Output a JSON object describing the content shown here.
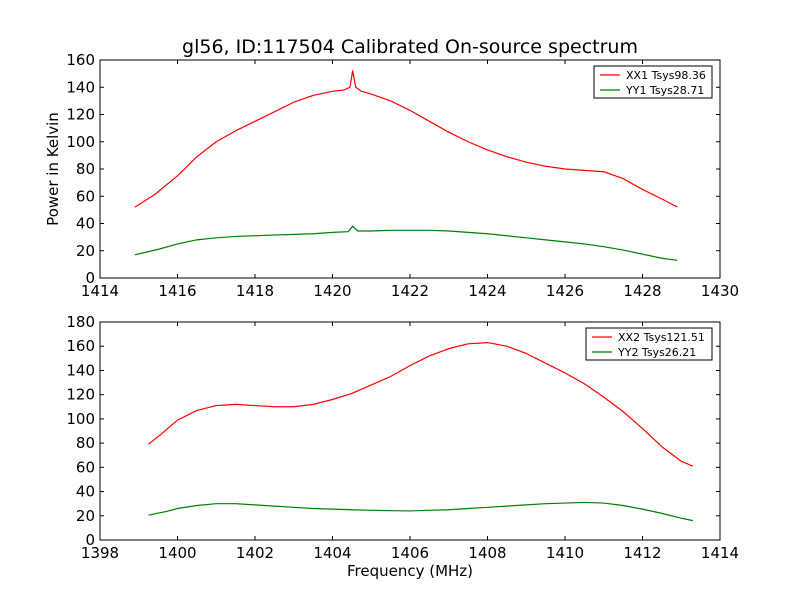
{
  "chart_data": [
    {
      "type": "line",
      "title": "gl56, ID:117504 Calibrated On-source spectrum",
      "xlabel": "",
      "ylabel": "Power in Kelvin",
      "xlim": [
        1414,
        1430
      ],
      "ylim": [
        0,
        160
      ],
      "xticks": [
        1414,
        1416,
        1418,
        1420,
        1422,
        1424,
        1426,
        1428,
        1430
      ],
      "yticks": [
        0,
        20,
        40,
        60,
        80,
        100,
        120,
        140,
        160
      ],
      "grid": false,
      "legend": "top-right",
      "series": [
        {
          "name": "XX1 Tsys98.36",
          "color": "#ff0000",
          "x": [
            1414.9,
            1415.4,
            1416.0,
            1416.5,
            1417.0,
            1417.5,
            1418.0,
            1418.5,
            1419.0,
            1419.5,
            1420.0,
            1420.3,
            1420.45,
            1420.52,
            1420.6,
            1420.75,
            1421.0,
            1421.5,
            1422.0,
            1422.5,
            1423.0,
            1423.5,
            1424.0,
            1424.5,
            1425.0,
            1425.5,
            1426.0,
            1426.5,
            1427.0,
            1427.5,
            1428.0,
            1428.5,
            1428.9
          ],
          "y": [
            52,
            61,
            75,
            89,
            100,
            108,
            115,
            122,
            129,
            134,
            137,
            138,
            140,
            152,
            140,
            137,
            135,
            130,
            123,
            115,
            107,
            100,
            94,
            89,
            85,
            82,
            80,
            79,
            78,
            73,
            65,
            58,
            52
          ]
        },
        {
          "name": "YY1 Tsys28.71",
          "color": "#007f00",
          "x": [
            1414.9,
            1415.5,
            1416.0,
            1416.5,
            1417.0,
            1417.5,
            1418.0,
            1418.5,
            1419.0,
            1419.5,
            1420.0,
            1420.4,
            1420.52,
            1420.65,
            1421.0,
            1421.5,
            1422.0,
            1422.5,
            1423.0,
            1423.5,
            1424.0,
            1424.5,
            1425.0,
            1425.5,
            1426.0,
            1426.5,
            1427.0,
            1427.5,
            1428.0,
            1428.5,
            1428.9
          ],
          "y": [
            17,
            21,
            25,
            28,
            29.5,
            30.5,
            31,
            31.5,
            32,
            32.5,
            33.5,
            34,
            38,
            34.5,
            34.5,
            35,
            35,
            35,
            34.5,
            33.5,
            32.5,
            31,
            29.5,
            28,
            26.5,
            25,
            23,
            20.5,
            17.5,
            14.5,
            13
          ]
        }
      ]
    },
    {
      "type": "line",
      "title": "",
      "xlabel": "Frequency (MHz)",
      "ylabel": "",
      "xlim": [
        1398,
        1414
      ],
      "ylim": [
        0,
        180
      ],
      "xticks": [
        1398,
        1400,
        1402,
        1404,
        1406,
        1408,
        1410,
        1412,
        1414
      ],
      "yticks": [
        0,
        20,
        40,
        60,
        80,
        100,
        120,
        140,
        160,
        180
      ],
      "grid": false,
      "legend": "top-right",
      "series": [
        {
          "name": "XX2 Tsys121.51",
          "color": "#ff0000",
          "x": [
            1399.25,
            1399.6,
            1400.0,
            1400.5,
            1401.0,
            1401.5,
            1402.0,
            1402.5,
            1403.0,
            1403.5,
            1404.0,
            1404.5,
            1405.0,
            1405.5,
            1406.0,
            1406.5,
            1407.0,
            1407.5,
            1408.0,
            1408.5,
            1409.0,
            1409.5,
            1410.0,
            1410.5,
            1411.0,
            1411.5,
            1412.0,
            1412.5,
            1413.0,
            1413.3
          ],
          "y": [
            79,
            88,
            99,
            107,
            111,
            112,
            111,
            110,
            110,
            112,
            116,
            121,
            128,
            135,
            144,
            152,
            158,
            162,
            163,
            160,
            154,
            146,
            138,
            129,
            118,
            106,
            92,
            77,
            65,
            61
          ]
        },
        {
          "name": "YY2 Tsys26.21",
          "color": "#007f00",
          "x": [
            1399.25,
            1399.7,
            1400.0,
            1400.5,
            1401.0,
            1401.5,
            1402.0,
            1402.5,
            1403.0,
            1403.5,
            1404.0,
            1404.5,
            1405.0,
            1405.5,
            1406.0,
            1406.5,
            1407.0,
            1407.5,
            1408.0,
            1408.5,
            1409.0,
            1409.5,
            1410.0,
            1410.5,
            1411.0,
            1411.5,
            1412.0,
            1412.5,
            1413.0,
            1413.3
          ],
          "y": [
            20.5,
            23.5,
            26,
            28.5,
            30,
            30,
            29,
            28,
            27,
            26,
            25.5,
            25,
            24.5,
            24.2,
            24,
            24.5,
            25,
            26,
            27,
            28,
            29,
            30,
            30.5,
            31,
            30.5,
            28.5,
            25.5,
            22,
            18,
            16
          ]
        }
      ]
    }
  ]
}
